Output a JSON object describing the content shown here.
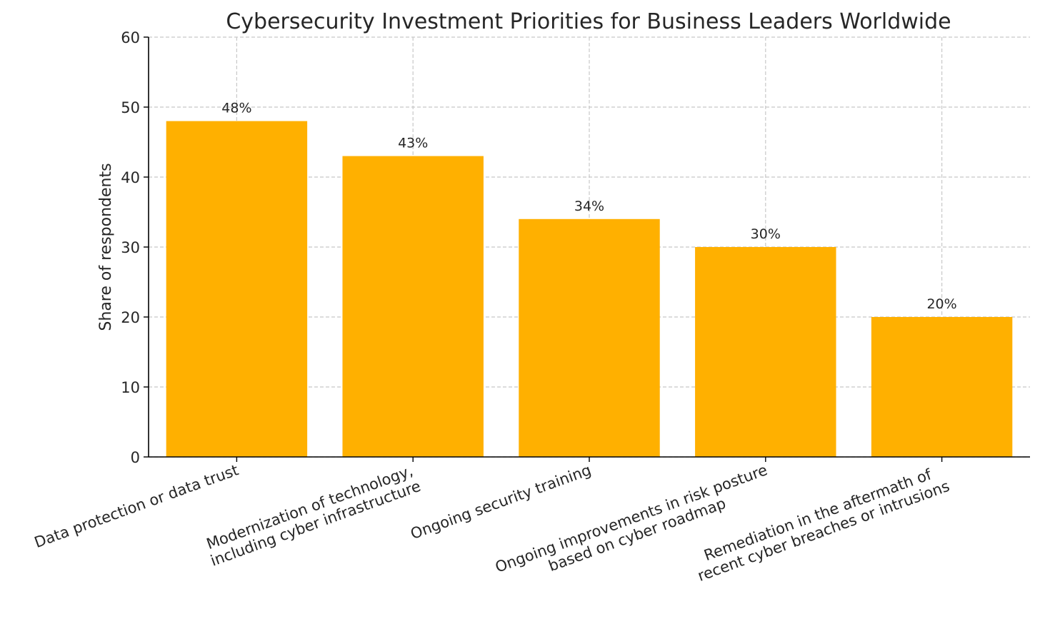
{
  "chart_data": {
    "type": "bar",
    "title": "Cybersecurity Investment Priorities for Business Leaders Worldwide",
    "xlabel": "",
    "ylabel": "Share of respondents",
    "ylim": [
      0,
      60
    ],
    "yticks": [
      0,
      10,
      20,
      30,
      40,
      50,
      60
    ],
    "grid": true,
    "categories": [
      [
        "Data protection or data trust"
      ],
      [
        "Modernization of technology,",
        "including cyber infrastructure"
      ],
      [
        "Ongoing security training"
      ],
      [
        "Ongoing improvements in risk posture",
        "based on cyber roadmap"
      ],
      [
        "Remediation in the aftermath of",
        "recent cyber breaches or intrusions"
      ]
    ],
    "values": [
      48,
      43,
      34,
      30,
      20
    ],
    "data_labels": [
      "48%",
      "43%",
      "34%",
      "30%",
      "20%"
    ],
    "bar_color": "#FFB000"
  }
}
